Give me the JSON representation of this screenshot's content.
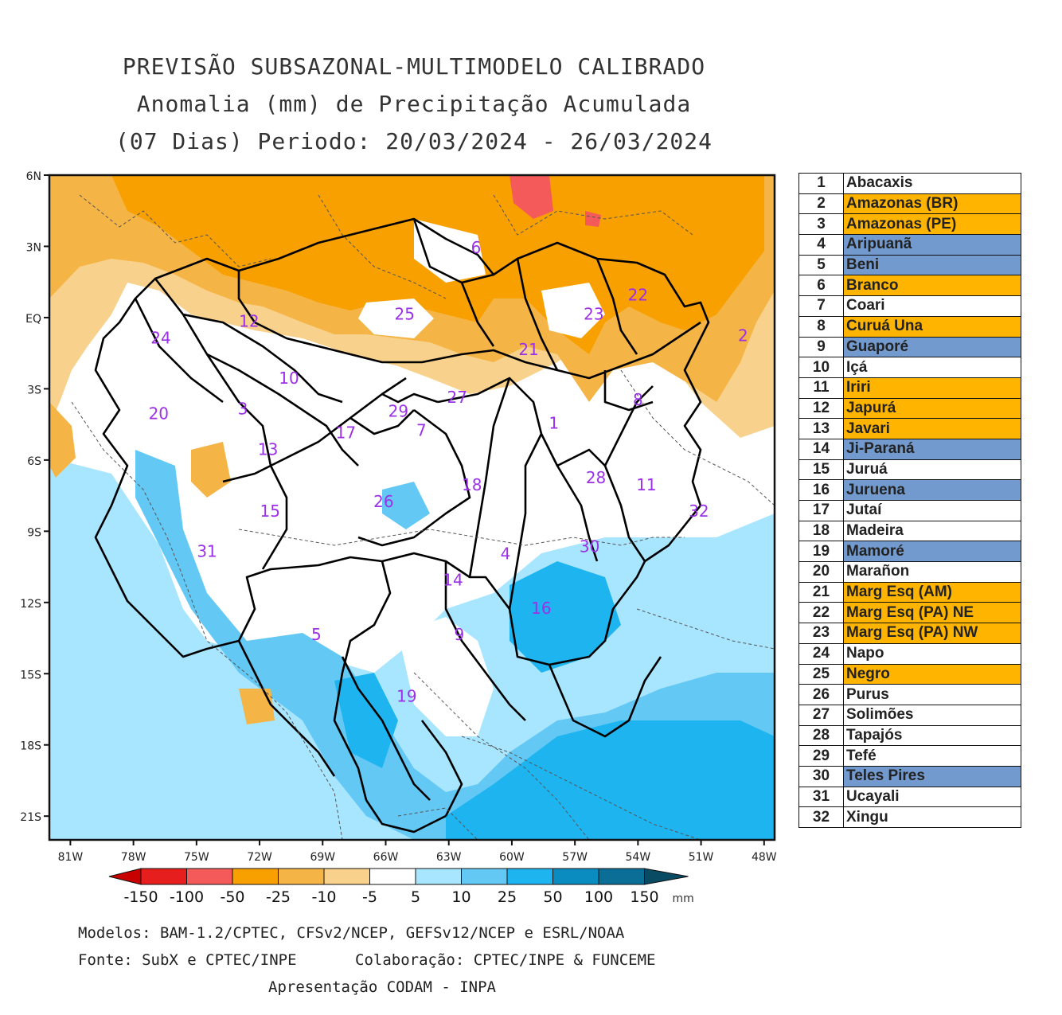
{
  "title": {
    "line1": "PREVISÃO SUBSAZONAL-MULTIMODELO CALIBRADO",
    "line2": "Anomalia (mm) de Precipitação Acumulada",
    "line3": "(07 Dias) Periodo: 20/03/2024 - 26/03/2024"
  },
  "map": {
    "lat_labels": [
      "6N",
      "3N",
      "EQ",
      "3S",
      "6S",
      "9S",
      "12S",
      "15S",
      "18S",
      "21S"
    ],
    "lon_labels": [
      "81W",
      "78W",
      "75W",
      "72W",
      "69W",
      "66W",
      "63W",
      "60W",
      "57W",
      "54W",
      "51W",
      "48W"
    ],
    "lat_values": [
      6,
      3,
      0,
      -3,
      -6,
      -9,
      -12,
      -15,
      -18,
      -21
    ],
    "lon_values": [
      -81,
      -78,
      -75,
      -72,
      -69,
      -66,
      -63,
      -60,
      -57,
      -54,
      -51,
      -48
    ],
    "extent": {
      "lon_min": -82,
      "lon_max": -47.5,
      "lat_min": -22,
      "lat_max": 6
    },
    "basin_labels": [
      {
        "id": "1",
        "lon": -58.0,
        "lat": -4.5
      },
      {
        "id": "2",
        "lon": -49.0,
        "lat": -0.8
      },
      {
        "id": "3",
        "lon": -72.8,
        "lat": -3.9
      },
      {
        "id": "4",
        "lon": -60.3,
        "lat": -10.0
      },
      {
        "id": "5",
        "lon": -69.3,
        "lat": -13.4
      },
      {
        "id": "6",
        "lon": -61.7,
        "lat": 2.9
      },
      {
        "id": "7",
        "lon": -64.3,
        "lat": -4.8
      },
      {
        "id": "8",
        "lon": -54.0,
        "lat": -3.5
      },
      {
        "id": "9",
        "lon": -62.5,
        "lat": -13.4
      },
      {
        "id": "10",
        "lon": -70.6,
        "lat": -2.6
      },
      {
        "id": "11",
        "lon": -53.6,
        "lat": -7.1
      },
      {
        "id": "12",
        "lon": -72.5,
        "lat": -0.2
      },
      {
        "id": "13",
        "lon": -71.6,
        "lat": -5.6
      },
      {
        "id": "14",
        "lon": -62.8,
        "lat": -11.1
      },
      {
        "id": "15",
        "lon": -71.5,
        "lat": -8.2
      },
      {
        "id": "16",
        "lon": -58.6,
        "lat": -12.3
      },
      {
        "id": "17",
        "lon": -67.9,
        "lat": -4.9
      },
      {
        "id": "18",
        "lon": -61.9,
        "lat": -7.1
      },
      {
        "id": "19",
        "lon": -65.0,
        "lat": -16.0
      },
      {
        "id": "20",
        "lon": -76.8,
        "lat": -4.1
      },
      {
        "id": "21",
        "lon": -59.2,
        "lat": -1.4
      },
      {
        "id": "22",
        "lon": -54.0,
        "lat": 0.9
      },
      {
        "id": "23",
        "lon": -56.1,
        "lat": 0.1
      },
      {
        "id": "24",
        "lon": -76.7,
        "lat": -0.9
      },
      {
        "id": "25",
        "lon": -65.1,
        "lat": 0.1
      },
      {
        "id": "26",
        "lon": -66.1,
        "lat": -7.8
      },
      {
        "id": "27",
        "lon": -62.6,
        "lat": -3.4
      },
      {
        "id": "28",
        "lon": -56.0,
        "lat": -6.8
      },
      {
        "id": "29",
        "lon": -65.4,
        "lat": -4.0
      },
      {
        "id": "30",
        "lon": -56.3,
        "lat": -9.7
      },
      {
        "id": "31",
        "lon": -74.5,
        "lat": -9.9
      },
      {
        "id": "32",
        "lon": -51.1,
        "lat": -8.2
      }
    ]
  },
  "basins": [
    {
      "num": "1",
      "name": "Abacaxis",
      "color": "#ffffff"
    },
    {
      "num": "2",
      "name": "Amazonas (BR)",
      "color": "#ffb400"
    },
    {
      "num": "3",
      "name": "Amazonas (PE)",
      "color": "#ffb400"
    },
    {
      "num": "4",
      "name": "Aripuanã",
      "color": "#729ace"
    },
    {
      "num": "5",
      "name": "Beni",
      "color": "#729ace"
    },
    {
      "num": "6",
      "name": "Branco",
      "color": "#ffb400"
    },
    {
      "num": "7",
      "name": "Coari",
      "color": "#ffffff"
    },
    {
      "num": "8",
      "name": "Curuá Una",
      "color": "#ffb400"
    },
    {
      "num": "9",
      "name": "Guaporé",
      "color": "#729ace"
    },
    {
      "num": "10",
      "name": "Içá",
      "color": "#ffffff"
    },
    {
      "num": "11",
      "name": "Iriri",
      "color": "#ffb400"
    },
    {
      "num": "12",
      "name": "Japurá",
      "color": "#ffb400"
    },
    {
      "num": "13",
      "name": "Javari",
      "color": "#ffb400"
    },
    {
      "num": "14",
      "name": "Ji-Paraná",
      "color": "#729ace"
    },
    {
      "num": "15",
      "name": "Juruá",
      "color": "#ffffff"
    },
    {
      "num": "16",
      "name": "Juruena",
      "color": "#729ace"
    },
    {
      "num": "17",
      "name": "Jutaí",
      "color": "#ffffff"
    },
    {
      "num": "18",
      "name": "Madeira",
      "color": "#ffffff"
    },
    {
      "num": "19",
      "name": "Mamoré",
      "color": "#729ace"
    },
    {
      "num": "20",
      "name": "Marañon",
      "color": "#ffffff"
    },
    {
      "num": "21",
      "name": "Marg Esq (AM)",
      "color": "#ffb400"
    },
    {
      "num": "22",
      "name": "Marg Esq (PA) NE",
      "color": "#ffb400"
    },
    {
      "num": "23",
      "name": "Marg Esq (PA) NW",
      "color": "#ffb400"
    },
    {
      "num": "24",
      "name": "Napo",
      "color": "#ffffff"
    },
    {
      "num": "25",
      "name": "Negro",
      "color": "#ffb400"
    },
    {
      "num": "26",
      "name": "Purus",
      "color": "#ffffff"
    },
    {
      "num": "27",
      "name": "Solimões",
      "color": "#ffffff"
    },
    {
      "num": "28",
      "name": "Tapajós",
      "color": "#ffffff"
    },
    {
      "num": "29",
      "name": "Tefé",
      "color": "#ffffff"
    },
    {
      "num": "30",
      "name": "Teles Pires",
      "color": "#729ace"
    },
    {
      "num": "31",
      "name": "Ucayali",
      "color": "#ffffff"
    },
    {
      "num": "32",
      "name": "Xingu",
      "color": "#ffffff"
    }
  ],
  "legend": {
    "unit": "mm",
    "colors": [
      "#c80000",
      "#e61e1e",
      "#f55a5a",
      "#f8a000",
      "#f5b446",
      "#f8d28c",
      "#ffffff",
      "#a8e6ff",
      "#64c8f5",
      "#1eb4f0",
      "#0b8cc0",
      "#0a6e96",
      "#0a4b64"
    ],
    "labels": [
      "-150",
      "-100",
      "-50",
      "-25",
      "-10",
      "-5",
      "5",
      "10",
      "25",
      "50",
      "100",
      "150"
    ]
  },
  "colors": {
    "positive_strong": "#ffb400",
    "positive_soft": "#f8d28c",
    "negative_soft": "#a8e6ff",
    "negative_mid": "#64c8f5",
    "negative_strong": "#1eb4f0",
    "label_purple": "#9b30e8"
  },
  "footer": {
    "models": "Modelos: BAM-1.2/CPTEC, CFSv2/NCEP, GEFSv12/NCEP e ESRL/NOAA",
    "source": "Fonte: SubX e CPTEC/INPE",
    "collab": "Colaboração: CPTEC/INPE & FUNCEME",
    "presentation": "Apresentação CODAM - INPA"
  }
}
